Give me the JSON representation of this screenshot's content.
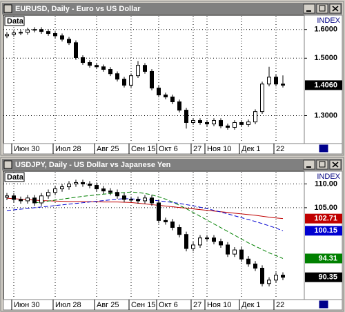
{
  "chart_data": [
    {
      "type": "candlestick",
      "title": "EURUSD, Daily - Euro vs US Dollar",
      "label": "Data",
      "index_label": "INDEX",
      "last_label": "1.4060",
      "up_color": "#ffffff",
      "down_color": "#000000",
      "categories": [
        null,
        "Июн 30",
        null,
        null,
        null,
        null,
        null,
        "Июл 28",
        null,
        null,
        null,
        null,
        null,
        "Авг 25",
        null,
        null,
        null,
        null,
        "Сен 15",
        null,
        null,
        null,
        "Окт 6",
        null,
        null,
        null,
        null,
        "27",
        null,
        "Ноя 10",
        null,
        null,
        null,
        null,
        "Дек 1",
        null,
        null,
        null,
        null,
        "22",
        null
      ],
      "open": [
        1.578,
        1.583,
        1.588,
        1.59,
        1.598,
        1.6,
        1.593,
        1.586,
        1.578,
        1.566,
        1.554,
        1.502,
        1.485,
        1.475,
        1.47,
        1.461,
        1.446,
        1.427,
        1.406,
        1.439,
        1.475,
        1.454,
        1.396,
        1.372,
        1.365,
        1.348,
        1.319,
        1.276,
        1.283,
        1.276,
        1.271,
        1.283,
        1.264,
        1.259,
        1.276,
        1.269,
        1.278,
        1.314,
        1.41,
        1.434,
        1.41
      ],
      "high": [
        1.591,
        1.596,
        1.598,
        1.606,
        1.608,
        1.608,
        1.601,
        1.594,
        1.586,
        1.574,
        1.562,
        1.51,
        1.493,
        1.483,
        1.478,
        1.469,
        1.454,
        1.435,
        1.447,
        1.49,
        1.483,
        1.462,
        1.404,
        1.38,
        1.373,
        1.356,
        1.327,
        1.291,
        1.291,
        1.284,
        1.291,
        1.291,
        1.272,
        1.284,
        1.284,
        1.286,
        1.322,
        1.418,
        1.47,
        1.442,
        1.44
      ],
      "low": [
        1.57,
        1.575,
        1.58,
        1.582,
        1.59,
        1.585,
        1.578,
        1.57,
        1.558,
        1.546,
        1.494,
        1.477,
        1.467,
        1.462,
        1.453,
        1.438,
        1.419,
        1.398,
        1.398,
        1.431,
        1.446,
        1.388,
        1.364,
        1.357,
        1.34,
        1.311,
        1.255,
        1.268,
        1.268,
        1.263,
        1.263,
        1.256,
        1.251,
        1.251,
        1.261,
        1.261,
        1.27,
        1.306,
        1.402,
        1.402,
        1.398
      ],
      "close": [
        1.583,
        1.588,
        1.59,
        1.598,
        1.6,
        1.593,
        1.586,
        1.578,
        1.566,
        1.554,
        1.502,
        1.485,
        1.475,
        1.47,
        1.461,
        1.446,
        1.427,
        1.406,
        1.439,
        1.475,
        1.454,
        1.396,
        1.372,
        1.365,
        1.348,
        1.319,
        1.276,
        1.283,
        1.276,
        1.271,
        1.283,
        1.264,
        1.259,
        1.276,
        1.269,
        1.278,
        1.314,
        1.41,
        1.434,
        1.41,
        1.406
      ],
      "ylim": [
        1.205,
        1.645
      ],
      "yticks": [
        {
          "value": 1.6,
          "label": "1.6000"
        },
        {
          "value": 1.5,
          "label": "1.5000"
        },
        {
          "value": 1.3,
          "label": "1.3000"
        }
      ],
      "grid": true,
      "series": []
    },
    {
      "type": "candlestick",
      "title": "USDJPY, Daily - US Dollar vs Japanese Yen",
      "label": "Data",
      "index_label": "INDEX",
      "up_color": "#ffffff",
      "down_color": "#000000",
      "categories": [
        null,
        "Июн 30",
        null,
        null,
        null,
        null,
        null,
        "Июл 28",
        null,
        null,
        null,
        null,
        null,
        "Авг 25",
        null,
        null,
        null,
        null,
        "Сен 15",
        null,
        null,
        null,
        "Окт 6",
        null,
        null,
        null,
        null,
        "27",
        null,
        "Ноя 10",
        null,
        null,
        null,
        null,
        "Дек 1",
        null,
        null,
        null,
        null,
        "22",
        null
      ],
      "open": [
        107.2,
        107.49,
        106.75,
        106.45,
        107.05,
        106.01,
        107.49,
        108.23,
        108.97,
        109.41,
        110.0,
        110.3,
        110.0,
        109.7,
        108.97,
        108.52,
        108.23,
        107.49,
        106.75,
        106.75,
        106.45,
        107.05,
        106.01,
        102.32,
        102.02,
        100.84,
        99.36,
        96.41,
        97.15,
        98.63,
        98.63,
        97.89,
        97.15,
        95.23,
        96.11,
        94.19,
        93.16,
        92.27,
        89.03,
        89.76,
        90.8
      ],
      "high": [
        108.09,
        108.09,
        107.35,
        107.65,
        107.65,
        108.09,
        108.83,
        109.57,
        110.01,
        110.6,
        110.9,
        110.9,
        110.6,
        110.3,
        109.57,
        109.12,
        108.83,
        108.09,
        107.35,
        107.35,
        107.65,
        107.65,
        106.61,
        102.92,
        102.62,
        101.44,
        99.96,
        97.75,
        99.23,
        99.23,
        99.23,
        98.49,
        97.75,
        96.71,
        96.71,
        94.79,
        93.76,
        92.87,
        90.36,
        91.4,
        91.4
      ],
      "low": [
        106.6,
        106.15,
        105.85,
        105.85,
        105.41,
        105.41,
        106.89,
        107.63,
        108.37,
        108.81,
        109.4,
        109.4,
        109.1,
        108.37,
        107.92,
        107.63,
        106.89,
        106.15,
        106.15,
        105.85,
        105.85,
        105.41,
        101.72,
        101.42,
        100.24,
        98.76,
        95.81,
        95.81,
        96.55,
        98.03,
        97.29,
        96.55,
        94.63,
        94.63,
        93.59,
        92.56,
        91.67,
        88.43,
        88.43,
        89.16,
        89.75
      ],
      "close": [
        107.49,
        106.75,
        106.45,
        107.05,
        106.01,
        107.49,
        108.23,
        108.97,
        109.41,
        110.0,
        110.3,
        110.0,
        109.7,
        108.97,
        108.52,
        108.23,
        107.49,
        106.75,
        106.75,
        106.45,
        107.05,
        106.01,
        102.32,
        102.02,
        100.84,
        99.36,
        96.41,
        97.15,
        98.63,
        98.63,
        97.89,
        97.15,
        95.23,
        96.11,
        94.19,
        93.16,
        92.27,
        89.03,
        89.76,
        90.8,
        90.35
      ],
      "ylim": [
        85.8,
        112.4
      ],
      "yticks": [
        {
          "value": 110,
          "label": "110.00"
        },
        {
          "value": 105,
          "label": "105.00"
        }
      ],
      "grid": true,
      "series": [
        {
          "color": "#c00000",
          "dashed": false,
          "values": [
            107.0,
            106.9,
            106.8,
            106.7,
            106.6,
            106.5,
            106.45,
            106.4,
            106.35,
            106.3,
            106.3,
            106.3,
            106.25,
            106.25,
            106.2,
            106.2,
            106.2,
            106.15,
            106.1,
            105.95,
            105.8,
            105.65,
            105.5,
            105.35,
            105.2,
            105.05,
            104.9,
            104.75,
            104.6,
            104.45,
            104.3,
            104.15,
            104.0,
            103.85,
            103.7,
            103.55,
            103.4,
            103.2,
            103.0,
            102.85,
            102.71
          ]
        },
        {
          "color": "#0000d0",
          "dashed": true,
          "values": [
            104.4,
            104.55,
            104.7,
            104.85,
            105.0,
            105.15,
            105.3,
            105.45,
            105.6,
            105.75,
            105.9,
            106.05,
            106.2,
            106.35,
            106.5,
            106.65,
            106.8,
            106.9,
            106.85,
            106.8,
            106.7,
            106.6,
            106.45,
            106.3,
            106.1,
            105.9,
            105.65,
            105.4,
            105.1,
            104.8,
            104.45,
            104.1,
            103.7,
            103.3,
            102.9,
            102.5,
            102.1,
            101.65,
            101.2,
            100.7,
            100.15
          ]
        },
        {
          "color": "#008000",
          "dashed": true,
          "values": [
            null,
            null,
            null,
            null,
            106.0,
            106.2,
            106.4,
            106.6,
            106.8,
            107.0,
            107.2,
            107.4,
            107.55,
            107.7,
            107.85,
            108.0,
            108.1,
            108.2,
            108.3,
            108.2,
            108.0,
            107.7,
            107.3,
            106.8,
            106.2,
            105.5,
            104.8,
            104.0,
            103.2,
            102.4,
            101.6,
            100.8,
            100.0,
            99.2,
            98.4,
            97.6,
            96.9,
            96.2,
            95.5,
            94.9,
            94.31
          ]
        }
      ]
    }
  ]
}
